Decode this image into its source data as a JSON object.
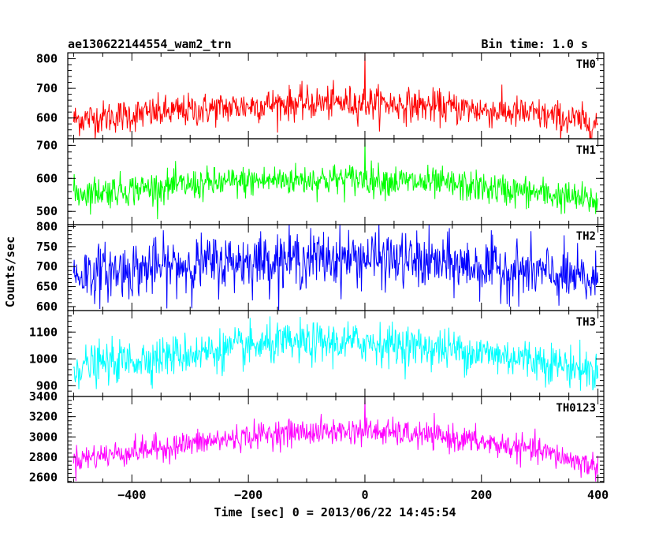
{
  "header": {
    "title": "ae130622144554_wam2_trn",
    "bin_time": "Bin time: 1.0 s"
  },
  "chart_data": {
    "type": "line",
    "xlabel": "Time [sec] 0 = 2013/06/22 14:45:54",
    "ylabel": "Counts/sec",
    "xlim": [
      -510,
      410
    ],
    "x_ticks": [
      -400,
      -200,
      0,
      200,
      400
    ],
    "x_tick_labels": [
      "−400",
      "−200",
      "0",
      "200",
      "400"
    ],
    "x_data_range": [
      -500,
      400
    ],
    "grid": false,
    "panels": [
      {
        "name": "TH0",
        "color": "#ff0000",
        "ylim": [
          530,
          820
        ],
        "y_ticks": [
          600,
          700,
          800
        ],
        "y_tick_labels": [
          "600",
          "700",
          "800"
        ],
        "trend": {
          "x": [
            -500,
            -300,
            -150,
            0,
            150,
            300,
            400
          ],
          "y": [
            595,
            625,
            648,
            652,
            635,
            610,
            580
          ]
        },
        "noise_sd": 28,
        "spikes": [
          {
            "x": 0,
            "y": 820
          }
        ]
      },
      {
        "name": "TH1",
        "color": "#00ff00",
        "ylim": [
          460,
          720
        ],
        "y_ticks": [
          500,
          600,
          700
        ],
        "y_tick_labels": [
          "500",
          "600",
          "700"
        ],
        "trend": {
          "x": [
            -500,
            -300,
            -150,
            0,
            150,
            300,
            400
          ],
          "y": [
            555,
            580,
            595,
            598,
            580,
            555,
            530
          ]
        },
        "noise_sd": 24,
        "spikes": [
          {
            "x": 0,
            "y": 720
          }
        ]
      },
      {
        "name": "TH2",
        "color": "#0000ff",
        "ylim": [
          590,
          805
        ],
        "y_ticks": [
          600,
          650,
          700,
          750,
          800
        ],
        "y_tick_labels": [
          "600",
          "650",
          "700",
          "750",
          "800"
        ],
        "trend": {
          "x": [
            -500,
            -300,
            -150,
            0,
            150,
            300,
            400
          ],
          "y": [
            680,
            705,
            718,
            722,
            705,
            685,
            660
          ]
        },
        "noise_sd": 35,
        "spikes": []
      },
      {
        "name": "TH3",
        "color": "#00ffff",
        "ylim": [
          860,
          1180
        ],
        "y_ticks": [
          900,
          1000,
          1100
        ],
        "y_tick_labels": [
          "900",
          "1000",
          "1100"
        ],
        "trend": {
          "x": [
            -500,
            -300,
            -150,
            0,
            150,
            300,
            400
          ],
          "y": [
            970,
            1020,
            1055,
            1062,
            1035,
            995,
            950
          ]
        },
        "noise_sd": 38,
        "spikes": []
      },
      {
        "name": "TH0123",
        "color": "#ff00ff",
        "ylim": [
          2550,
          3400
        ],
        "y_ticks": [
          2600,
          2800,
          3000,
          3200,
          3400
        ],
        "y_tick_labels": [
          "2600",
          "2800",
          "3000",
          "3200",
          "3400"
        ],
        "trend": {
          "x": [
            -500,
            -300,
            -150,
            0,
            150,
            300,
            400
          ],
          "y": [
            2780,
            2930,
            3040,
            3060,
            2990,
            2860,
            2700
          ]
        },
        "noise_sd": 65,
        "spikes": [
          {
            "x": 0,
            "y": 3400
          }
        ]
      }
    ]
  }
}
